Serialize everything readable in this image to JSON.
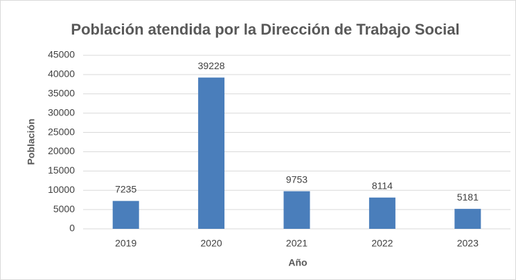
{
  "chart_data": {
    "type": "bar",
    "title": "Población atendida por la Dirección de Trabajo Social",
    "x_label": "Año",
    "y_label": "Población",
    "categories": [
      "2019",
      "2020",
      "2021",
      "2022",
      "2023"
    ],
    "values": [
      7235,
      39228,
      9753,
      8114,
      5181
    ],
    "color": "#4a7ebb",
    "ylim": [
      0,
      45000
    ],
    "yticks": [
      0,
      5000,
      10000,
      15000,
      20000,
      25000,
      30000,
      35000,
      40000,
      45000
    ],
    "grid": true
  }
}
